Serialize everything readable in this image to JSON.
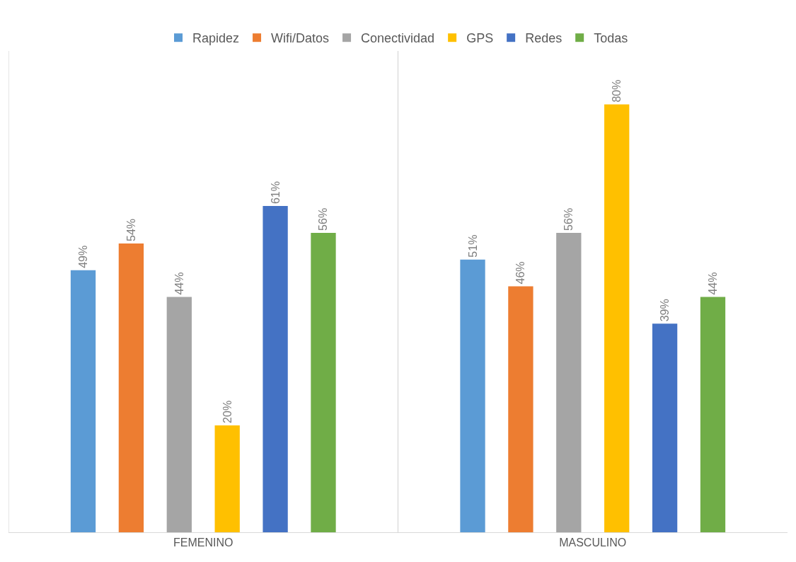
{
  "chart_data": {
    "type": "bar",
    "categories": [
      "FEMENINO",
      "MASCULINO"
    ],
    "series": [
      {
        "name": "Rapidez",
        "color": "#5b9bd5",
        "values": [
          49,
          51
        ],
        "value_labels": [
          "49%",
          "51%"
        ]
      },
      {
        "name": "Wifi/Datos",
        "color": "#ed7d31",
        "values": [
          54,
          46
        ],
        "value_labels": [
          "54%",
          "46%"
        ]
      },
      {
        "name": "Conectividad",
        "color": "#a5a5a5",
        "values": [
          44,
          56
        ],
        "value_labels": [
          "44%",
          "56%"
        ]
      },
      {
        "name": "GPS",
        "color": "#ffc000",
        "values": [
          20,
          80
        ],
        "value_labels": [
          "20%",
          "80%"
        ]
      },
      {
        "name": "Redes",
        "color": "#4472c4",
        "values": [
          61,
          39
        ],
        "value_labels": [
          "61%",
          "39%"
        ]
      },
      {
        "name": "Todas",
        "color": "#70ad47",
        "values": [
          56,
          44
        ],
        "value_labels": [
          "56%",
          "44%"
        ]
      }
    ],
    "ylim": [
      0,
      90
    ],
    "tick_labels": "x",
    "grid": "x",
    "legend": "top"
  }
}
